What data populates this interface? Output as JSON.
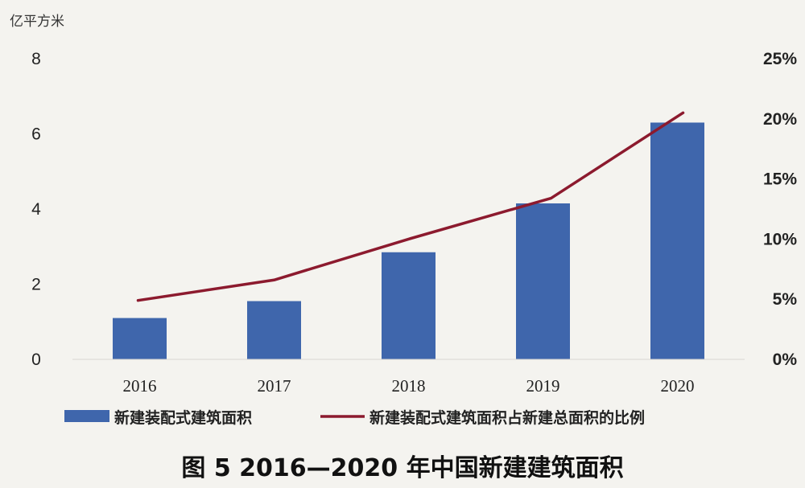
{
  "chart_data": {
    "type": "bar",
    "title": "",
    "caption": "图 5  2016—2020 年中国新建建筑面积",
    "xlabel": "",
    "ylabel_left": "亿平方米",
    "categories": [
      "2016",
      "2017",
      "2018",
      "2019",
      "2020"
    ],
    "y_left": {
      "lim": [
        0,
        8
      ],
      "ticks": [
        "0",
        "2",
        "4",
        "6",
        "8"
      ]
    },
    "y_right": {
      "lim": [
        0,
        25
      ],
      "ticks": [
        "0%",
        "5%",
        "10%",
        "15%",
        "20%",
        "25%"
      ]
    },
    "series": [
      {
        "name": "新建装配式建筑面积",
        "type": "bar",
        "axis": "left",
        "color": "#3f66ac",
        "values": [
          1.1,
          1.55,
          2.85,
          4.15,
          6.3
        ]
      },
      {
        "name": "新建装配式建筑面积占新建总面积的比例",
        "type": "line",
        "axis": "right",
        "color": "#8c1a2e",
        "values": [
          4.9,
          6.6,
          10.0,
          13.4,
          20.5
        ]
      }
    ],
    "grid": false,
    "legend_position": "bottom"
  }
}
